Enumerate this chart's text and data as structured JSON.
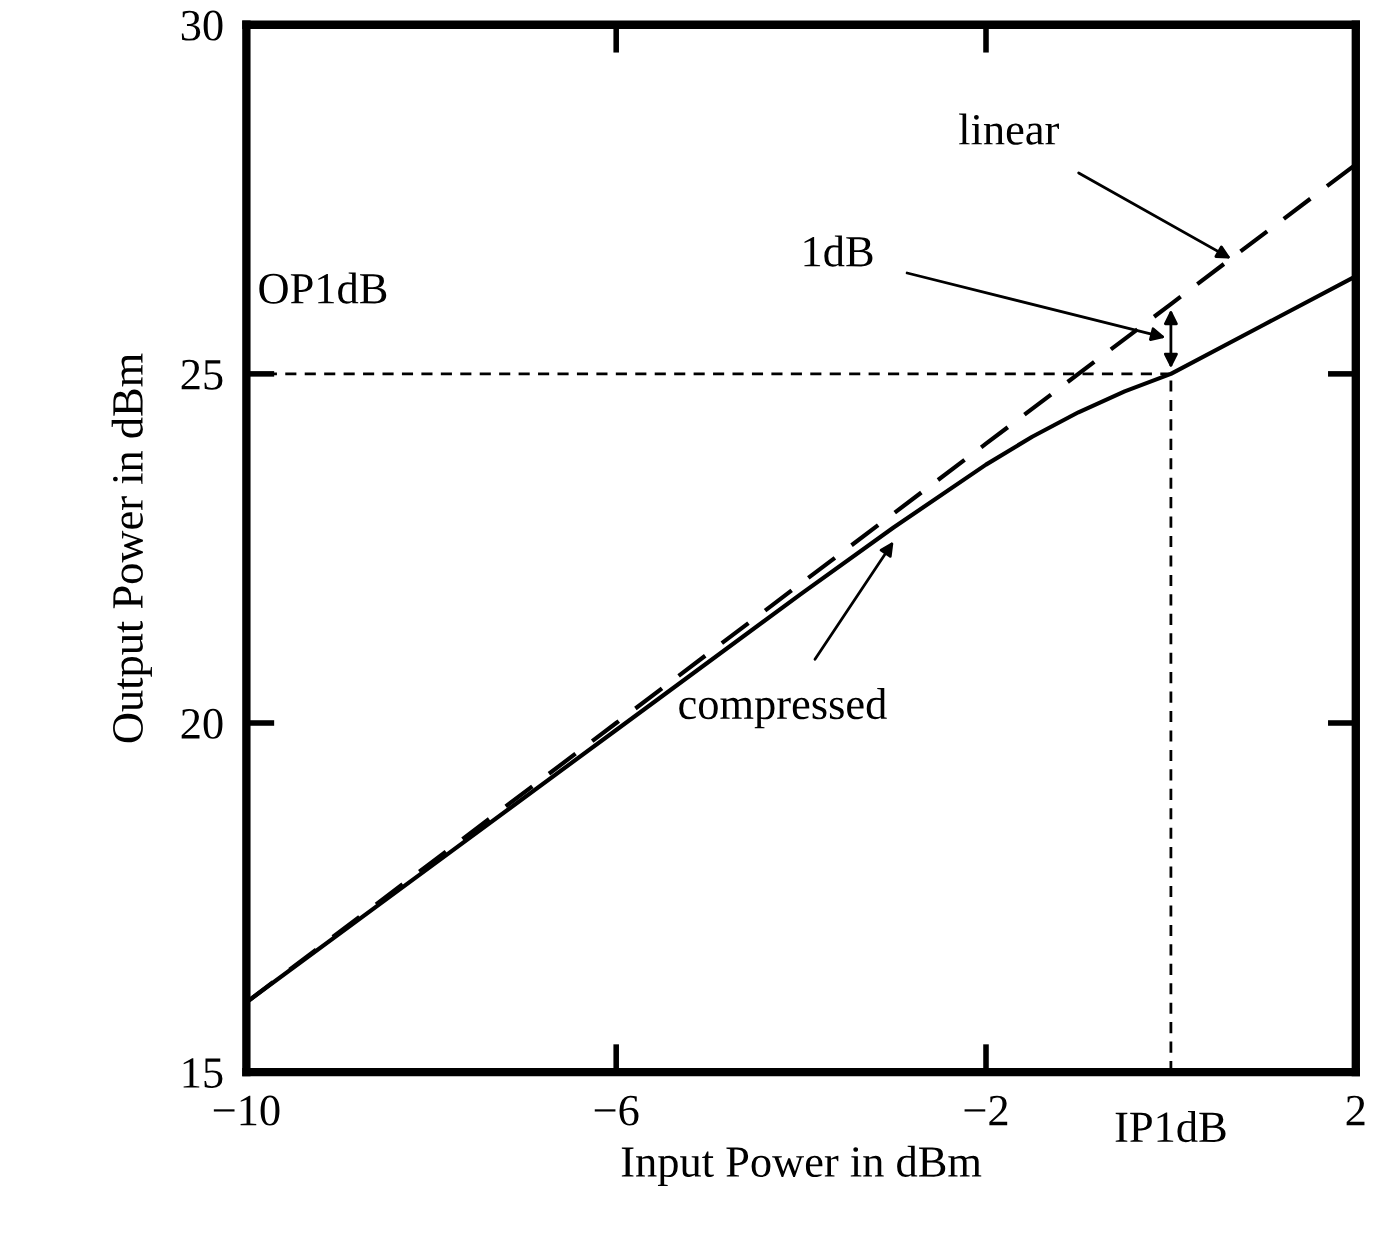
{
  "chart_data": {
    "type": "line",
    "xlabel": "Input Power in dBm",
    "ylabel": "Output Power in dBm",
    "xlim": [
      -10,
      2
    ],
    "ylim": [
      15,
      30
    ],
    "xticks": [
      {
        "value": -10,
        "label": "−10"
      },
      {
        "value": -6,
        "label": "−6"
      },
      {
        "value": -2,
        "label": "−2"
      },
      2
    ],
    "yticks": [
      15,
      20,
      25,
      30
    ],
    "grid": false,
    "marker": "none",
    "series": [
      {
        "color": "#000000",
        "line_style": "dashed",
        "x": [
          -10,
          -8,
          -6,
          -4,
          -2,
          0,
          2
        ],
        "values": [
          16,
          18,
          20,
          22,
          24,
          26,
          28
        ]
      },
      {
        "color": "#000000",
        "line_style": "solid",
        "x": [
          -10,
          -8,
          -6,
          -4,
          -3,
          -2,
          -1.5,
          -1,
          -0.5,
          0,
          1,
          2
        ],
        "values": [
          16,
          17.95,
          19.9,
          21.85,
          22.8,
          23.7,
          24.1,
          24.45,
          24.75,
          25,
          25.7,
          26.4
        ]
      }
    ],
    "ref_lines": [
      {
        "axis": "y",
        "value": 25,
        "label": "OP1dB",
        "color": "#000000",
        "line_style": "dashed"
      },
      {
        "axis": "x",
        "value": 0,
        "label": "IP1dB",
        "color": "#000000",
        "line_style": "dashed"
      }
    ],
    "annotations": [
      {
        "text": "linear",
        "x": 0.65,
        "y": 26.65
      },
      "1dB",
      {
        "text": "compressed",
        "x": -3,
        "y": 22.6
      }
    ]
  }
}
